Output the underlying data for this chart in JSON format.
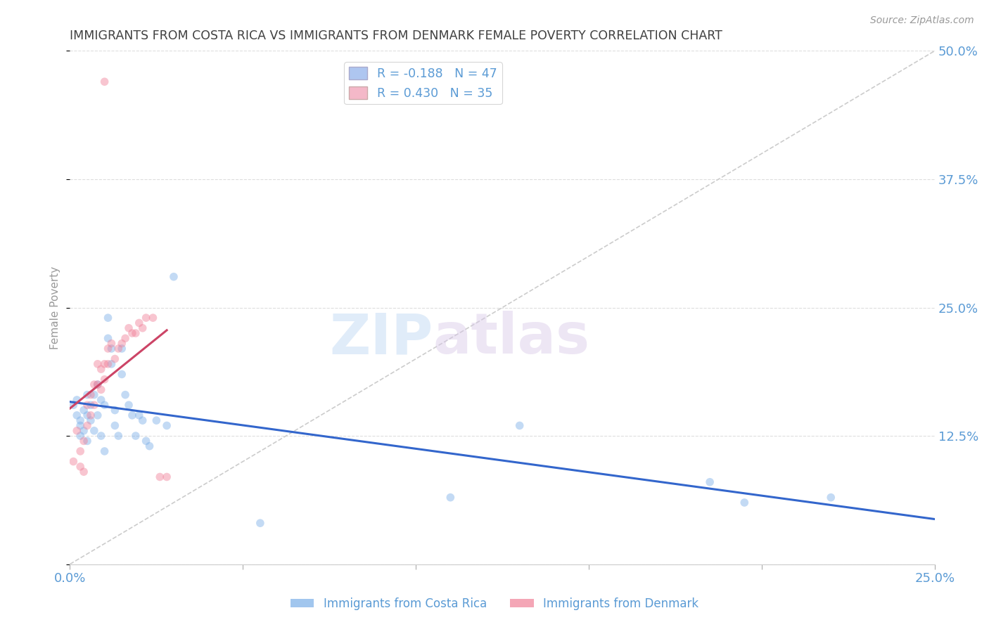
{
  "title": "IMMIGRANTS FROM COSTA RICA VS IMMIGRANTS FROM DENMARK FEMALE POVERTY CORRELATION CHART",
  "source": "Source: ZipAtlas.com",
  "ylabel": "Female Poverty",
  "xlim": [
    0.0,
    0.25
  ],
  "ylim": [
    0.0,
    0.5
  ],
  "xticks": [
    0.0,
    0.05,
    0.1,
    0.15,
    0.2,
    0.25
  ],
  "yticks": [
    0.0,
    0.125,
    0.25,
    0.375,
    0.5
  ],
  "xticklabels": [
    "0.0%",
    "",
    "",
    "",
    "",
    "25.0%"
  ],
  "yticklabels": [
    "",
    "12.5%",
    "25.0%",
    "37.5%",
    "50.0%"
  ],
  "watermark_zip": "ZIP",
  "watermark_atlas": "atlas",
  "legend_entries": [
    {
      "label": "R = -0.188   N = 47",
      "color": "#aec6f0"
    },
    {
      "label": "R = 0.430   N = 35",
      "color": "#f4b8c8"
    }
  ],
  "costa_rica_color": "#7aaee8",
  "denmark_color": "#f08098",
  "trendline_costa_rica_color": "#3366cc",
  "trendline_denmark_color": "#cc4466",
  "diagonal_color": "#cccccc",
  "grid_color": "#dddddd",
  "axis_label_color": "#5b9bd5",
  "title_color": "#404040",
  "costa_rica_x": [
    0.001,
    0.002,
    0.002,
    0.003,
    0.003,
    0.003,
    0.004,
    0.004,
    0.005,
    0.005,
    0.005,
    0.006,
    0.006,
    0.007,
    0.007,
    0.008,
    0.008,
    0.009,
    0.009,
    0.01,
    0.01,
    0.011,
    0.011,
    0.012,
    0.012,
    0.013,
    0.013,
    0.014,
    0.015,
    0.015,
    0.016,
    0.017,
    0.018,
    0.019,
    0.02,
    0.021,
    0.022,
    0.023,
    0.025,
    0.028,
    0.03,
    0.055,
    0.11,
    0.13,
    0.185,
    0.195,
    0.22
  ],
  "costa_rica_y": [
    0.155,
    0.16,
    0.145,
    0.14,
    0.135,
    0.125,
    0.15,
    0.13,
    0.165,
    0.145,
    0.12,
    0.155,
    0.14,
    0.165,
    0.13,
    0.175,
    0.145,
    0.16,
    0.125,
    0.155,
    0.11,
    0.24,
    0.22,
    0.21,
    0.195,
    0.15,
    0.135,
    0.125,
    0.21,
    0.185,
    0.165,
    0.155,
    0.145,
    0.125,
    0.145,
    0.14,
    0.12,
    0.115,
    0.14,
    0.135,
    0.28,
    0.04,
    0.065,
    0.135,
    0.08,
    0.06,
    0.065
  ],
  "denmark_x": [
    0.001,
    0.002,
    0.003,
    0.003,
    0.004,
    0.004,
    0.005,
    0.005,
    0.006,
    0.006,
    0.007,
    0.007,
    0.008,
    0.008,
    0.009,
    0.009,
    0.01,
    0.01,
    0.011,
    0.011,
    0.012,
    0.013,
    0.014,
    0.015,
    0.016,
    0.017,
    0.018,
    0.019,
    0.02,
    0.021,
    0.022,
    0.024,
    0.026,
    0.028,
    0.01
  ],
  "denmark_y": [
    0.1,
    0.13,
    0.11,
    0.095,
    0.12,
    0.09,
    0.155,
    0.135,
    0.165,
    0.145,
    0.175,
    0.155,
    0.195,
    0.175,
    0.19,
    0.17,
    0.195,
    0.18,
    0.21,
    0.195,
    0.215,
    0.2,
    0.21,
    0.215,
    0.22,
    0.23,
    0.225,
    0.225,
    0.235,
    0.23,
    0.24,
    0.24,
    0.085,
    0.085,
    0.47
  ],
  "marker_size": 70,
  "marker_alpha": 0.45,
  "figsize": [
    14.06,
    8.92
  ],
  "dpi": 100
}
